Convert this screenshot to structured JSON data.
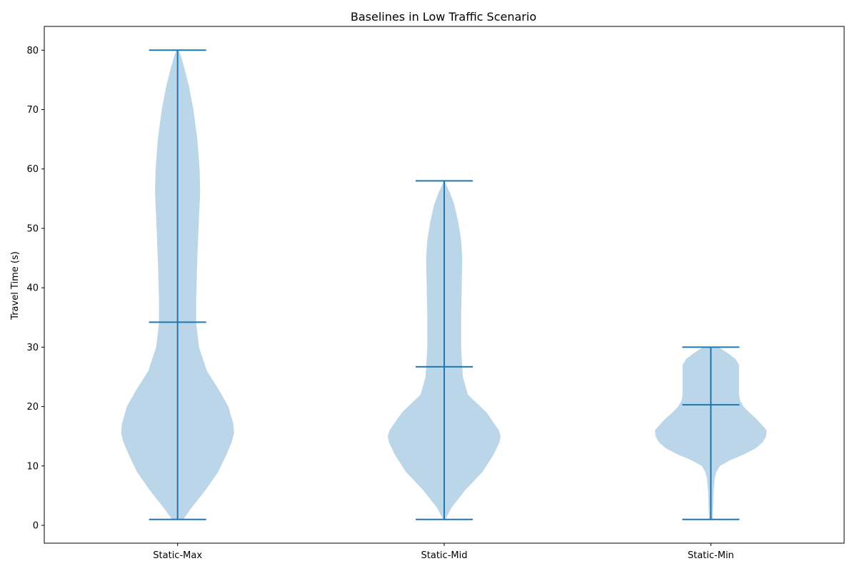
{
  "chart_data": {
    "type": "violin",
    "title": "Baselines in Low Traffic Scenario",
    "xlabel": "",
    "ylabel": "Travel Time (s)",
    "ylim": [
      -3,
      84
    ],
    "yticks": [
      0,
      10,
      20,
      30,
      40,
      50,
      60,
      70,
      80
    ],
    "categories": [
      "Static-Max",
      "Static-Mid",
      "Static-Min"
    ],
    "fill_color": "#bad6e8",
    "line_color": "#1f77b4",
    "grid": false,
    "series": [
      {
        "min": 1,
        "mean": 34.2,
        "max": 80,
        "density": [
          [
            1,
            0.1
          ],
          [
            3,
            0.25
          ],
          [
            6,
            0.5
          ],
          [
            9,
            0.72
          ],
          [
            12,
            0.87
          ],
          [
            14,
            0.96
          ],
          [
            15.5,
            1.0
          ],
          [
            17,
            0.99
          ],
          [
            20,
            0.9
          ],
          [
            23,
            0.72
          ],
          [
            26,
            0.52
          ],
          [
            30,
            0.38
          ],
          [
            34,
            0.33
          ],
          [
            38,
            0.33
          ],
          [
            45,
            0.35
          ],
          [
            52,
            0.38
          ],
          [
            56,
            0.4
          ],
          [
            60,
            0.39
          ],
          [
            65,
            0.35
          ],
          [
            70,
            0.28
          ],
          [
            74,
            0.2
          ],
          [
            77,
            0.12
          ],
          [
            79,
            0.06
          ],
          [
            80,
            0.02
          ]
        ]
      },
      {
        "min": 1,
        "mean": 26.7,
        "max": 58,
        "density": [
          [
            1,
            0.02
          ],
          [
            3,
            0.13
          ],
          [
            6,
            0.38
          ],
          [
            9,
            0.68
          ],
          [
            12,
            0.88
          ],
          [
            14,
            0.98
          ],
          [
            15,
            1.0
          ],
          [
            16,
            0.97
          ],
          [
            19,
            0.75
          ],
          [
            22,
            0.42
          ],
          [
            25,
            0.33
          ],
          [
            30,
            0.3
          ],
          [
            35,
            0.3
          ],
          [
            40,
            0.31
          ],
          [
            45,
            0.32
          ],
          [
            48,
            0.3
          ],
          [
            51,
            0.25
          ],
          [
            54,
            0.18
          ],
          [
            56,
            0.1
          ],
          [
            57,
            0.05
          ],
          [
            58,
            0.01
          ]
        ]
      },
      {
        "min": 1,
        "mean": 20.3,
        "max": 30,
        "density": [
          [
            1,
            0.03
          ],
          [
            3,
            0.04
          ],
          [
            6,
            0.05
          ],
          [
            8,
            0.07
          ],
          [
            9,
            0.1
          ],
          [
            10,
            0.16
          ],
          [
            11,
            0.35
          ],
          [
            12,
            0.6
          ],
          [
            13,
            0.8
          ],
          [
            14,
            0.92
          ],
          [
            15,
            0.98
          ],
          [
            16,
            0.99
          ],
          [
            17,
            0.9
          ],
          [
            18,
            0.8
          ],
          [
            19,
            0.68
          ],
          [
            20,
            0.58
          ],
          [
            21,
            0.52
          ],
          [
            22,
            0.5
          ],
          [
            24,
            0.5
          ],
          [
            26,
            0.5
          ],
          [
            27,
            0.5
          ],
          [
            28,
            0.44
          ],
          [
            29,
            0.3
          ],
          [
            30,
            0.14
          ]
        ]
      }
    ]
  }
}
